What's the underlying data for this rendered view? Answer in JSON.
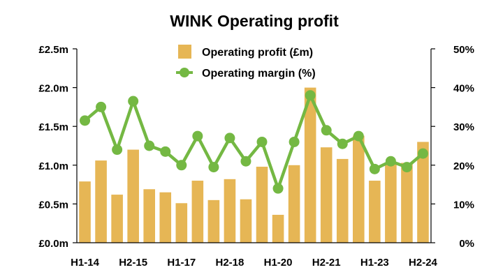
{
  "chart_data": {
    "type": "bar",
    "title": "WINK Operating profit",
    "categories": [
      "H1-14",
      "H2-14",
      "H1-15",
      "H2-15",
      "H1-16",
      "H2-16",
      "H1-17",
      "H2-17",
      "H1-18",
      "H2-18",
      "H1-19",
      "H2-19",
      "H1-20",
      "H2-20",
      "H1-21",
      "H2-21",
      "H1-22",
      "H2-22",
      "H1-23",
      "H2-23",
      "H1-24",
      "H2-24"
    ],
    "x_tick_labels": [
      "H1-14",
      "H2-15",
      "H1-17",
      "H2-18",
      "H1-20",
      "H2-21",
      "H1-23",
      "H2-24"
    ],
    "series": [
      {
        "name": "Operating profit (£m)",
        "type": "bar",
        "axis": "left",
        "color": "#e6b655",
        "values": [
          0.79,
          1.06,
          0.62,
          1.2,
          0.69,
          0.65,
          0.51,
          0.8,
          0.55,
          0.82,
          0.56,
          0.98,
          0.36,
          1.0,
          2.0,
          1.23,
          1.08,
          1.38,
          0.8,
          1.02,
          1.03,
          1.3
        ]
      },
      {
        "name": "Operating margin (%)",
        "type": "line",
        "axis": "right",
        "color": "#74b843",
        "values": [
          31.5,
          35.0,
          24.0,
          36.5,
          25.0,
          23.5,
          20.0,
          27.5,
          19.5,
          27.0,
          21.0,
          26.0,
          14.0,
          26.0,
          38.0,
          29.0,
          25.5,
          27.5,
          19.0,
          21.0,
          19.5,
          23.0
        ]
      }
    ],
    "y_left": {
      "ylim": [
        0,
        2.5
      ],
      "ticks": [
        0,
        0.5,
        1.0,
        1.5,
        2.0,
        2.5
      ],
      "tick_labels": [
        "£0.0m",
        "£0.5m",
        "£1.0m",
        "£1.5m",
        "£2.0m",
        "£2.5m"
      ]
    },
    "y_right": {
      "ylim": [
        0,
        50
      ],
      "ticks": [
        0,
        10,
        20,
        30,
        40,
        50
      ],
      "tick_labels": [
        "0%",
        "10%",
        "20%",
        "30%",
        "40%",
        "50%"
      ]
    },
    "grid": false,
    "legend_position": "top-center"
  }
}
